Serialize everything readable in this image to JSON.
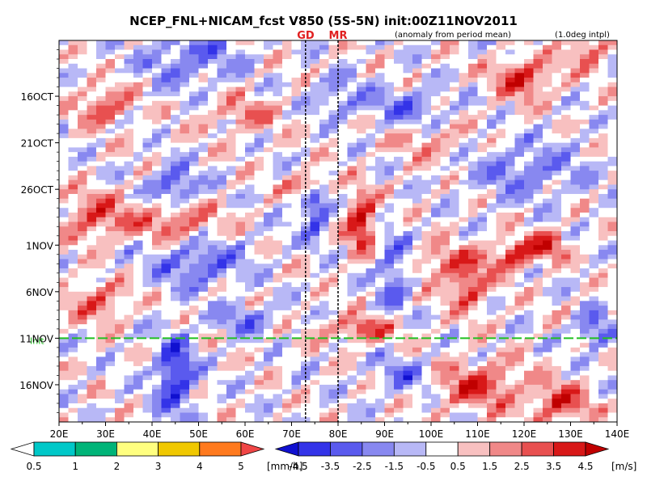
{
  "chart_data": {
    "type": "heatmap",
    "title": "NCEP_FNL+NICAM_fcst V850 (5S-5N) init:00Z11NOV2011",
    "subtitle_left": "(anomaly from period mean)",
    "subtitle_right": "(1.0deg intpl)",
    "markers": [
      {
        "label": "GD",
        "lon": 73
      },
      {
        "label": "MR",
        "lon": 80
      }
    ],
    "x_ticks": [
      "20E",
      "30E",
      "40E",
      "50E",
      "60E",
      "70E",
      "80E",
      "90E",
      "100E",
      "110E",
      "120E",
      "130E",
      "140E"
    ],
    "x_values": [
      20,
      30,
      40,
      50,
      60,
      70,
      80,
      90,
      100,
      110,
      120,
      130,
      140
    ],
    "xlim": [
      20,
      140
    ],
    "y_ticks": [
      "16OCT",
      "21OCT",
      "26OCT",
      "1NOV",
      "6NOV",
      "11NOV",
      "16NOV"
    ],
    "y_days": [
      6,
      11,
      16,
      22,
      27,
      32,
      37
    ],
    "ylim_days": [
      0,
      41
    ],
    "init_day": 32,
    "init_label": "Init",
    "wind_colorbar": {
      "levels": [
        "-4.5",
        "-3.5",
        "-2.5",
        "-1.5",
        "-0.5",
        "0.5",
        "1.5",
        "2.5",
        "3.5",
        "4.5"
      ],
      "colors": [
        "#1010d0",
        "#3333e8",
        "#5a5aee",
        "#8888f0",
        "#b8b8f6",
        "#ffffff",
        "#f8c0c0",
        "#f08888",
        "#e85050",
        "#d81818",
        "#c00000"
      ],
      "unit": "[m/s]"
    },
    "rain_colorbar": {
      "levels": [
        "0.5",
        "1",
        "2",
        "3",
        "4",
        "5"
      ],
      "colors": [
        "#ffffff",
        "#00c8c8",
        "#00b478",
        "#ffff80",
        "#f0c800",
        "#ff7a1e",
        "#f04646"
      ],
      "unit": "[mm/h]"
    }
  }
}
